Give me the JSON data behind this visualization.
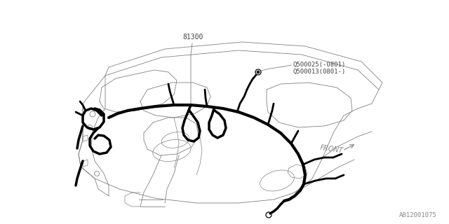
{
  "bg_color": "#ffffff",
  "line_color": "#1a1a1a",
  "thin_line_color": "#808080",
  "harness_color": "#000000",
  "label_81300": "81300",
  "label_q1": "Q500025(-0801)",
  "label_q2": "Q500013(0801-)",
  "label_front": "FRONT",
  "label_id": "A812001075",
  "figsize": [
    6.4,
    3.2
  ],
  "dpi": 100
}
